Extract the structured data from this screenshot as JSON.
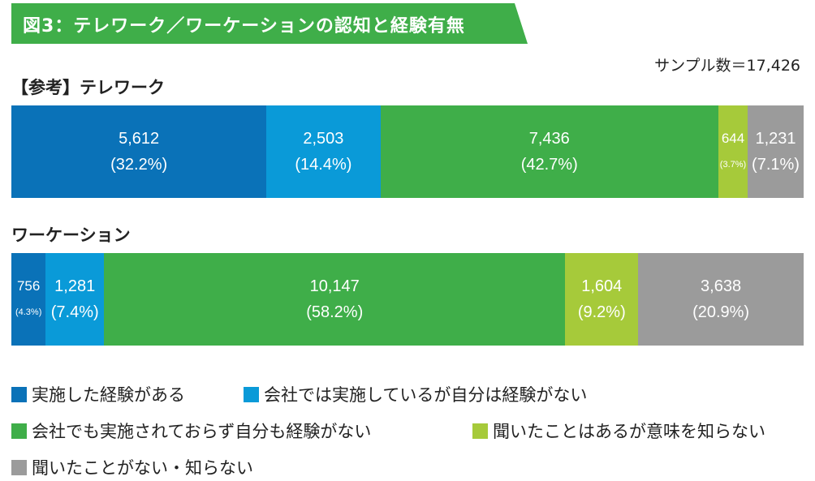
{
  "title": "図3：テレワーク／ワーケーションの認知と経験有無",
  "note": "サンプル数＝17,426",
  "chart_data": {
    "type": "bar",
    "orientation": "horizontal-stacked-100",
    "sample_size": 17426,
    "categories": [
      "【参考】テレワーク",
      "ワーケーション"
    ],
    "series": [
      {
        "name": "実施した経験がある",
        "color": "#0a72b8",
        "values": [
          5612,
          756
        ],
        "percents": [
          "(32.2%)",
          "(4.3%)"
        ]
      },
      {
        "name": "会社では実施しているが自分は経験がない",
        "color": "#0a9ad8",
        "values": [
          2503,
          1281
        ],
        "percents": [
          "(14.4%)",
          "(7.4%)"
        ]
      },
      {
        "name": "会社でも実施されておらず自分も経験がない",
        "color": "#3fae49",
        "values": [
          7436,
          10147
        ],
        "percents": [
          "(42.7%)",
          "(58.2%)"
        ]
      },
      {
        "name": "聞いたことはあるが意味を知らない",
        "color": "#a6ca3a",
        "values": [
          644,
          1604
        ],
        "percents": [
          "(3.7%)",
          "(9.2%)"
        ]
      },
      {
        "name": "聞いたことがない・知らない",
        "color": "#9b9b9b",
        "values": [
          1231,
          3638
        ],
        "percents": [
          "(7.1%)",
          "(20.9%)"
        ]
      }
    ]
  }
}
